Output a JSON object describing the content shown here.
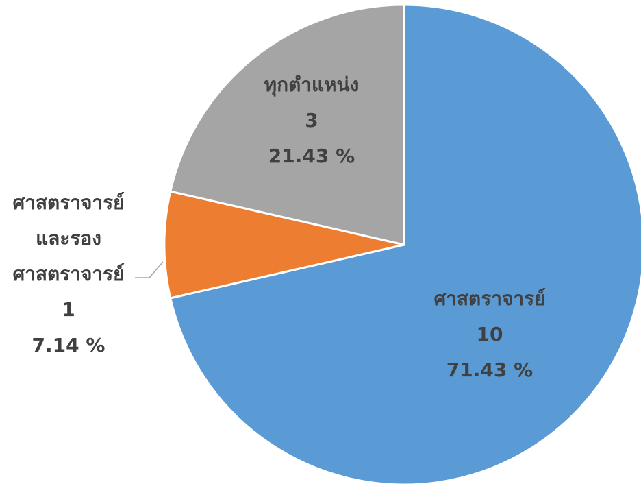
{
  "chart_data": {
    "type": "pie",
    "categories": [
      "ศาสตราจารย์",
      "ศาสตราจารย์\nและรอง\nศาสตราจารย์",
      "ทุกตำแหน่ง"
    ],
    "counts": [
      10,
      1,
      3
    ],
    "values": [
      71.43,
      7.14,
      21.43
    ],
    "value_labels": [
      "71.43 %",
      "7.14 %",
      "21.43 %"
    ],
    "colors": [
      "#5b9bd5",
      "#ed7d31",
      "#a5a5a5"
    ]
  }
}
